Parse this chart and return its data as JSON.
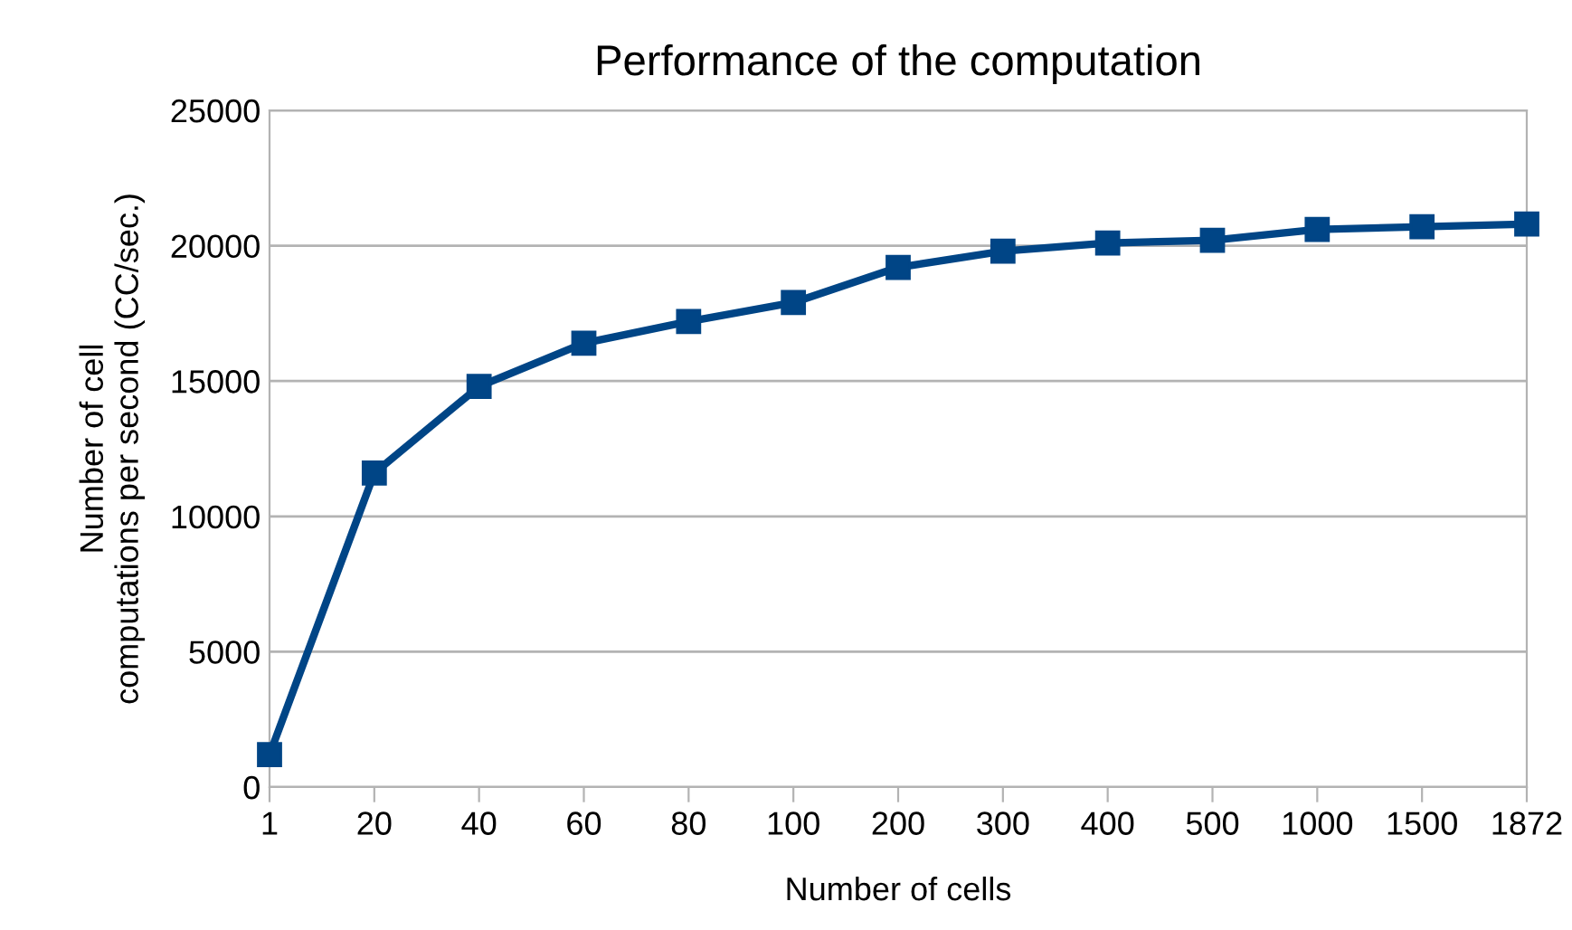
{
  "chart_data": {
    "type": "line",
    "title": "Performance of the computation",
    "xlabel": "Number of cells",
    "ylabel": "Number of cell\ncomputations per second (CC/sec.)",
    "categories": [
      "1",
      "20",
      "40",
      "60",
      "80",
      "100",
      "200",
      "300",
      "400",
      "500",
      "1000",
      "1500",
      "1872"
    ],
    "series": [
      {
        "color": "#004586",
        "values": [
          1200,
          11600,
          14800,
          16400,
          17200,
          17900,
          19200,
          19800,
          20100,
          20200,
          20600,
          20700,
          20800
        ]
      }
    ],
    "ylim": [
      0,
      25000
    ],
    "yticks": [
      0,
      5000,
      10000,
      15000,
      20000,
      25000
    ],
    "grid": "y",
    "legend": false,
    "marker": "square",
    "line_style": "solid"
  }
}
